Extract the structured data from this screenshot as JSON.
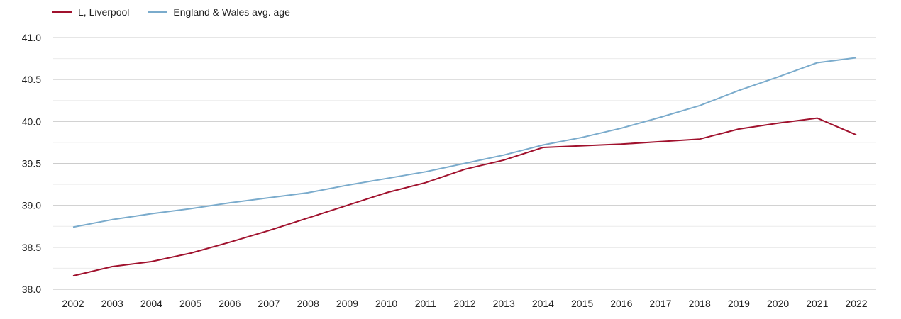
{
  "chart_data": {
    "type": "line",
    "x": [
      "2002",
      "2003",
      "2004",
      "2005",
      "2006",
      "2007",
      "2008",
      "2009",
      "2010",
      "2011",
      "2012",
      "2013",
      "2014",
      "2015",
      "2016",
      "2017",
      "2018",
      "2019",
      "2020",
      "2021",
      "2022"
    ],
    "ylim": [
      38.0,
      41.0
    ],
    "yticks": [
      "38.0",
      "38.5",
      "39.0",
      "39.5",
      "40.0",
      "40.5",
      "41.0"
    ],
    "grid": true,
    "legend_position": "top-left",
    "series": [
      {
        "name": "L, Liverpool",
        "color": "#a0112d",
        "values": [
          38.16,
          38.27,
          38.33,
          38.43,
          38.56,
          38.7,
          38.85,
          39.0,
          39.15,
          39.27,
          39.43,
          39.54,
          39.69,
          39.71,
          39.73,
          39.76,
          39.79,
          39.91,
          39.98,
          40.04,
          39.84
        ]
      },
      {
        "name": "England & Wales avg. age",
        "color": "#7aabcc",
        "values": [
          38.74,
          38.83,
          38.9,
          38.96,
          39.03,
          39.09,
          39.15,
          39.24,
          39.32,
          39.4,
          39.5,
          39.6,
          39.72,
          39.81,
          39.92,
          40.05,
          40.19,
          40.37,
          40.53,
          40.7,
          40.76
        ]
      }
    ]
  }
}
